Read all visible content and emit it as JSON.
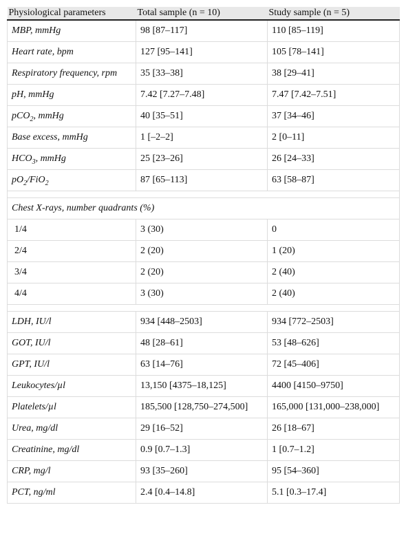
{
  "table": {
    "header": [
      "Physiological parameters",
      "Total sample (n = 10)",
      "Study sample (n = 5)"
    ],
    "sections": [
      {
        "rows": [
          {
            "label": "MBP, mmHg",
            "values": [
              "98 [87–117]",
              "110 [85–119]"
            ]
          },
          {
            "label": "Heart rate, bpm",
            "values": [
              "127 [95–141]",
              "105 [78–141]"
            ]
          },
          {
            "label": "Respiratory frequency, rpm",
            "values": [
              "35 [33–38]",
              "38 [29–41]"
            ]
          },
          {
            "label": "pH, mmHg",
            "values": [
              "7.42 [7.27–7.48]",
              "7.47 [7.42–7.51]"
            ]
          },
          {
            "label": [
              {
                "text": "pCO"
              },
              {
                "sub": "2"
              },
              {
                "text": ", mmHg"
              }
            ],
            "values": [
              "40 [35–51]",
              "37 [34–46]"
            ]
          },
          {
            "label": "Base excess, mmHg",
            "values": [
              "1 [–2–2]",
              "2 [0–11]"
            ]
          },
          {
            "label": [
              {
                "text": "HCO"
              },
              {
                "sub": "3"
              },
              {
                "text": ", mmHg"
              }
            ],
            "values": [
              "25 [23–26]",
              "26 [24–33]"
            ]
          },
          {
            "label": [
              {
                "text": "pO"
              },
              {
                "sub": "2"
              },
              {
                "text": "/FiO"
              },
              {
                "sub": "2"
              }
            ],
            "values": [
              "87 [65–113]",
              "63 [58–87]"
            ]
          }
        ]
      },
      {
        "title": "Chest X-rays, number quadrants (%)",
        "rows": [
          {
            "label": "1/4",
            "values": [
              "3 (30)",
              "0"
            ]
          },
          {
            "label": "2/4",
            "values": [
              "2 (20)",
              "1 (20)"
            ]
          },
          {
            "label": "3/4",
            "values": [
              "2 (20)",
              "2 (40)"
            ]
          },
          {
            "label": "4/4",
            "values": [
              "3 (30)",
              "2 (40)"
            ]
          }
        ]
      },
      {
        "rows": [
          {
            "label": "LDH, IU/l",
            "values": [
              "934 [448–2503]",
              "934 [772–2503]"
            ]
          },
          {
            "label": "GOT, IU/l",
            "values": [
              "48 [28–61]",
              "53 [48–626]"
            ]
          },
          {
            "label": "GPT, IU/l",
            "values": [
              "63 [14–76]",
              "72 [45–406]"
            ]
          },
          {
            "label": "Leukocytes/µl",
            "values": [
              "13,150 [4375–18,125]",
              "4400 [4150–9750]"
            ]
          },
          {
            "label": "Platelets/µl",
            "values": [
              "185,500 [128,750–274,500]",
              "165,000 [131,000–238,000]"
            ]
          },
          {
            "label": "Urea, mg/dl",
            "values": [
              "29 [16–52]",
              "26 [18–67]"
            ]
          },
          {
            "label": "Creatinine, mg/dl",
            "values": [
              "0.9 [0.7–1.3]",
              "1 [0.7–1.2]"
            ]
          },
          {
            "label": "CRP, mg/l",
            "values": [
              "93 [35–260]",
              "95 [54–360]"
            ]
          },
          {
            "label": "PCT, ng/ml",
            "values": [
              "2.4 [0.4–14.8]",
              "5.1 [0.3–17.4]"
            ]
          }
        ]
      }
    ]
  }
}
